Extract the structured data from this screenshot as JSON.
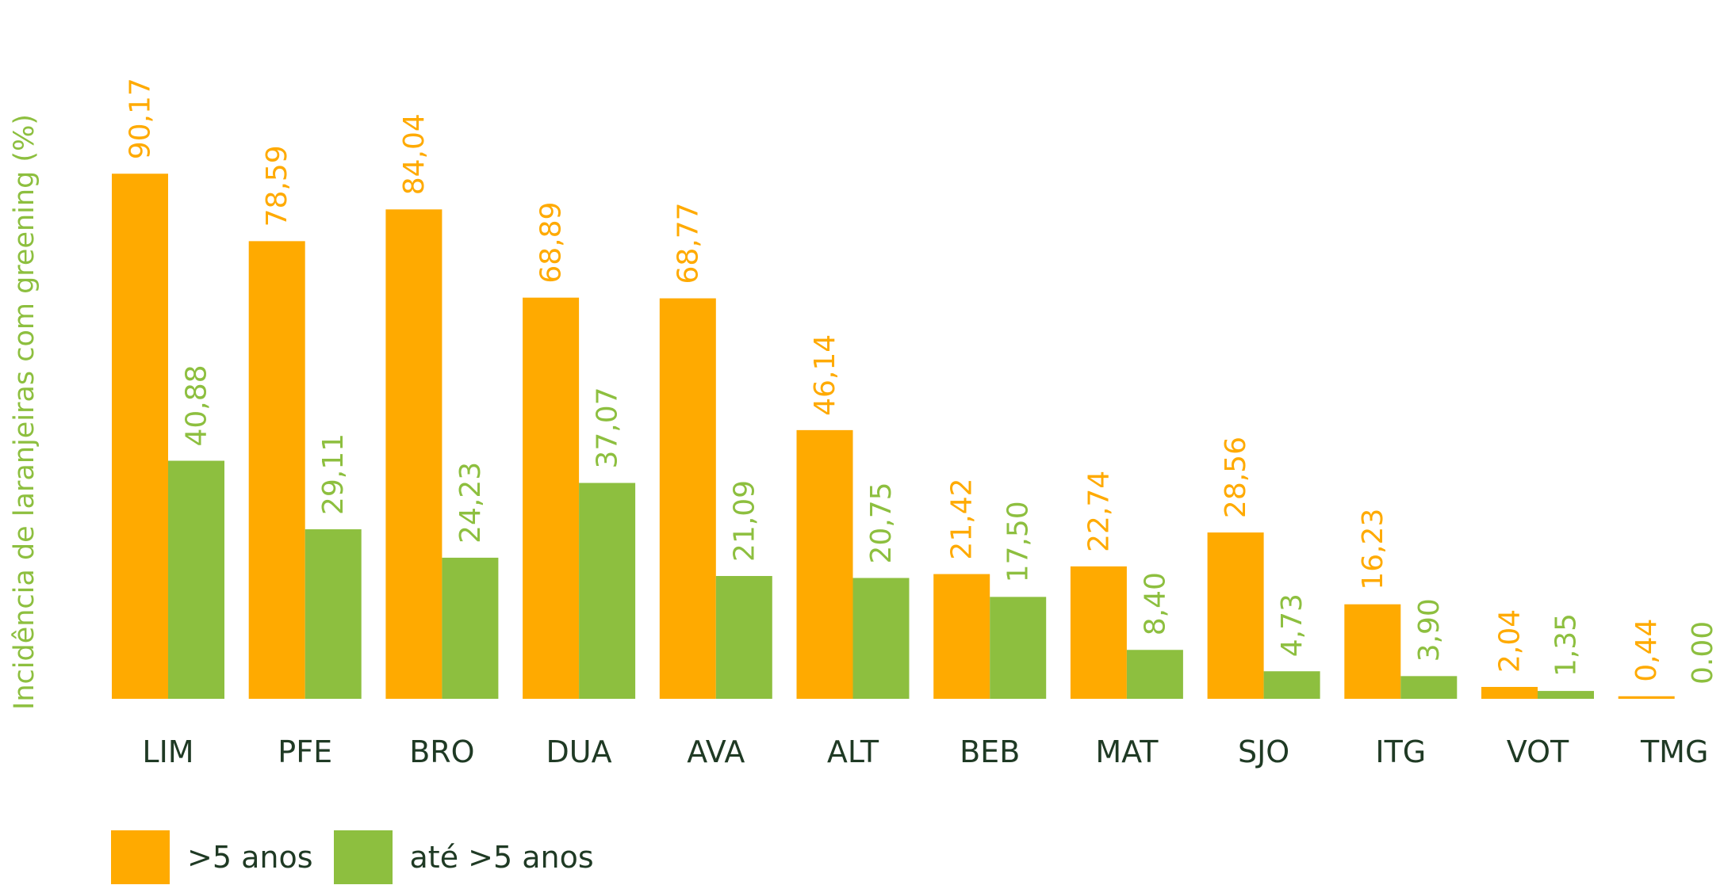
{
  "chart_data": {
    "type": "bar",
    "title": "",
    "ylabel": "Incidência de laranjeiras com greening (%)",
    "xlabel": "",
    "ylim": [
      0,
      100
    ],
    "grid": false,
    "legend_position": "bottom-left",
    "categories": [
      "LIM",
      "PFE",
      "BRO",
      "DUA",
      "AVA",
      "ALT",
      "BEB",
      "MAT",
      "SJO",
      "ITG",
      "VOT",
      "TMG"
    ],
    "series": [
      {
        "name": ">5 anos",
        "color": "#FFAA00",
        "values": [
          90.17,
          78.59,
          84.04,
          68.89,
          68.77,
          46.14,
          21.42,
          22.74,
          28.56,
          16.23,
          2.04,
          0.44
        ],
        "labels": [
          "90,17",
          "78,59",
          "84,04",
          "68,89",
          "68,77",
          "46,14",
          "21,42",
          "22,74",
          "28,56",
          "16,23",
          "2,04",
          "0,44"
        ]
      },
      {
        "name": "até >5 anos",
        "color": "#8DBF3F",
        "values": [
          40.88,
          29.11,
          24.23,
          37.07,
          21.09,
          20.75,
          17.5,
          8.4,
          4.73,
          3.9,
          1.35,
          0.0
        ],
        "labels": [
          "40,88",
          "29,11",
          "24,23",
          "37,07",
          "21,09",
          "20,75",
          "17,50",
          "8,40",
          "4,73",
          "3,90",
          "1,35",
          "0.00"
        ]
      }
    ]
  },
  "legend": {
    "items": [
      {
        "label": ">5 anos",
        "color": "#FFAA00"
      },
      {
        "label": "até >5 anos",
        "color": "#8DBF3F"
      }
    ]
  },
  "colors": {
    "category_text": "#1F3A24",
    "ylabel_text": "#8DBF3F"
  }
}
